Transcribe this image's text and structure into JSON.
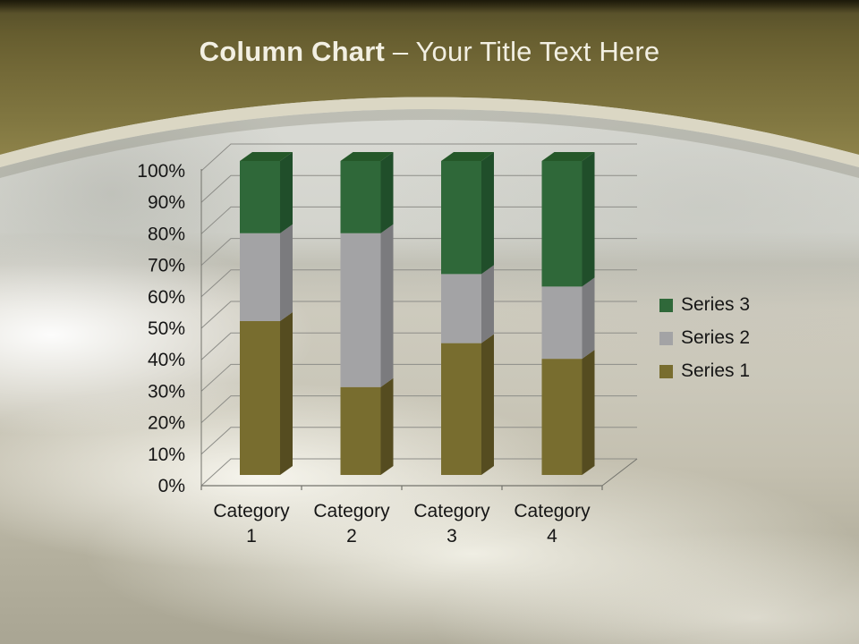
{
  "slide": {
    "title_bold": "Column Chart",
    "title_rest": " – Your Title Text Here"
  },
  "colors": {
    "title_text": "#f2efe2",
    "band_top_edge": "#2c2710",
    "band_dark": "#57502a",
    "band_light": "#8d8249",
    "arc_cream": "#dbd7c4",
    "chart_text": "#161616",
    "gridline": "#8d8d88",
    "axis": "#73736c"
  },
  "chart_data": {
    "type": "bar",
    "subtype": "3d-100pct-stacked-column",
    "title": "",
    "xlabel": "",
    "ylabel": "",
    "ylim": [
      0,
      100
    ],
    "grid": true,
    "legend_position": "right",
    "categories": [
      "Category 1",
      "Category 2",
      "Category 3",
      "Category 4"
    ],
    "series": [
      {
        "name": "Series 1",
        "values_pct": [
          49,
          28,
          42,
          37
        ],
        "front": "#786D2F",
        "side": "#554C20",
        "top": "#665D28"
      },
      {
        "name": "Series 2",
        "values_pct": [
          28,
          49,
          22,
          23
        ],
        "front": "#A3A3A5",
        "side": "#7B7B7E",
        "top": "#8F8F92"
      },
      {
        "name": "Series 3",
        "values_pct": [
          23,
          23,
          36,
          40
        ],
        "front": "#2F6839",
        "side": "#204E2A",
        "top": "#255829"
      }
    ],
    "y_ticks": [
      "0%",
      "10%",
      "20%",
      "30%",
      "40%",
      "50%",
      "60%",
      "70%",
      "80%",
      "90%",
      "100%"
    ],
    "legend_order": [
      2,
      1,
      0
    ]
  }
}
